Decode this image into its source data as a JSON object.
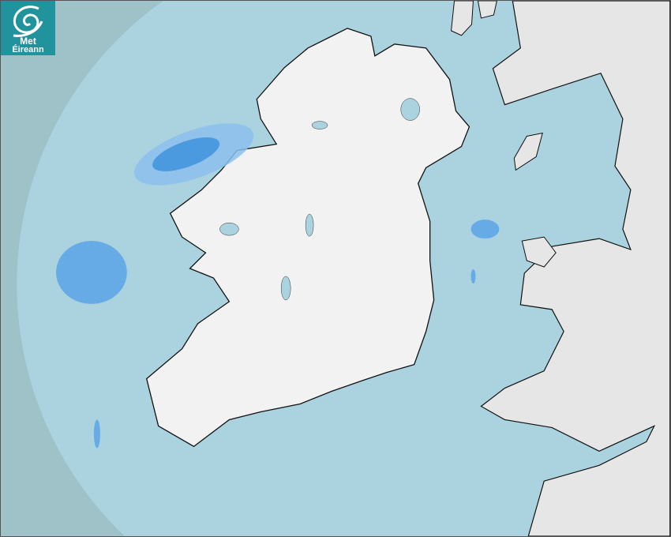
{
  "logo": {
    "line1": "Met",
    "line2": "Éireann",
    "color": "#21939c"
  },
  "colors": {
    "sea_outside_radar": "#9fc2c9",
    "sea_in_radar": "#aad3df",
    "land": "#ececec",
    "rain_light": "#8cc0ef",
    "rain_moderate": "#3a8fe0"
  }
}
